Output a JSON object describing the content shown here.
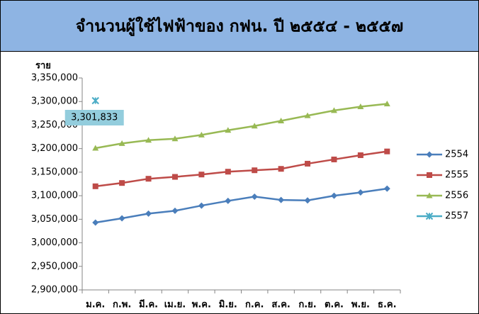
{
  "chart_data": {
    "type": "line",
    "title": "จำนวนผู้ใช้ไฟฟ้าของ กฟน. ปี ๒๕๕๔ - ๒๕๕๗",
    "y_label": "ราย",
    "categories": [
      "ม.ค.",
      "ก.พ.",
      "มี.ค.",
      "เม.ย.",
      "พ.ค.",
      "มิ.ย.",
      "ก.ค.",
      "ส.ค.",
      "ก.ย.",
      "ต.ค.",
      "พ.ย.",
      "ธ.ค."
    ],
    "series": [
      {
        "name": "2554",
        "color": "#4a7ebb",
        "marker": "diamond",
        "values": [
          3043000,
          3052000,
          3062000,
          3068000,
          3079000,
          3089000,
          3098000,
          3091000,
          3090000,
          3100000,
          3107000,
          3115000
        ]
      },
      {
        "name": "2555",
        "color": "#be4b48",
        "marker": "square",
        "values": [
          3120000,
          3127000,
          3136000,
          3140000,
          3145000,
          3151000,
          3154000,
          3157000,
          3168000,
          3177000,
          3186000,
          3194000
        ]
      },
      {
        "name": "2556",
        "color": "#98b954",
        "marker": "triangle",
        "values": [
          3201000,
          3211000,
          3218000,
          3221000,
          3229000,
          3239000,
          3248000,
          3259000,
          3270000,
          3281000,
          3289000,
          3295000
        ]
      },
      {
        "name": "2557",
        "color": "#4bacc6",
        "marker": "star",
        "values": [
          3301833,
          null,
          null,
          null,
          null,
          null,
          null,
          null,
          null,
          null,
          null,
          null
        ],
        "value_labels": [
          "3,301,833",
          null,
          null,
          null,
          null,
          null,
          null,
          null,
          null,
          null,
          null,
          null
        ]
      }
    ],
    "ylim": [
      2900000,
      3350000
    ],
    "yticks": [
      {
        "value": 2900000,
        "label": "2,900,000"
      },
      {
        "value": 2950000,
        "label": "2,950,000"
      },
      {
        "value": 3000000,
        "label": "3,000,000"
      },
      {
        "value": 3050000,
        "label": "3,050,000"
      },
      {
        "value": 3100000,
        "label": "3,100,000"
      },
      {
        "value": 3150000,
        "label": "3,150,000"
      },
      {
        "value": 3200000,
        "label": "3,200,000"
      },
      {
        "value": 3250000,
        "label": "3,250,000"
      },
      {
        "value": 3300000,
        "label": "3,300,000"
      },
      {
        "value": 3350000,
        "label": "3,350,000"
      }
    ],
    "grid": false,
    "legend": "right"
  }
}
